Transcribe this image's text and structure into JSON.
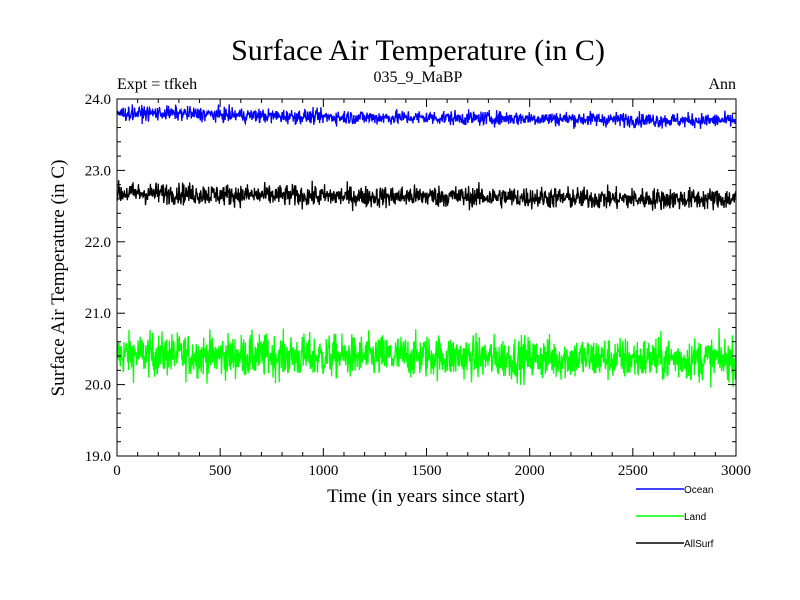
{
  "chart_data": {
    "type": "line",
    "title": "Surface Air Temperature (in C)",
    "subtitle": "035_9_MaBP",
    "left_annotation": "Expt = tfkeh",
    "right_annotation": "Ann",
    "xlabel": "Time (in years since start)",
    "ylabel": "Surface Air Temperature (in C)",
    "xlim": [
      0,
      3000
    ],
    "ylim": [
      19.0,
      24.0
    ],
    "x_ticks": [
      0,
      500,
      1000,
      1500,
      2000,
      2500,
      3000
    ],
    "x_tick_labels": [
      "0",
      "500",
      "1000",
      "1500",
      "2000",
      "2500",
      "3000"
    ],
    "y_ticks": [
      19.0,
      20.0,
      21.0,
      22.0,
      23.0,
      24.0
    ],
    "y_tick_labels": [
      "19.0",
      "20.0",
      "21.0",
      "22.0",
      "23.0",
      "24.0"
    ],
    "grid": false,
    "legend_position": "bottom-right",
    "series": [
      {
        "name": "Ocean",
        "color": "#0000ff",
        "x": [
          0,
          250,
          500,
          750,
          1000,
          1250,
          1500,
          1750,
          2000,
          2250,
          2500,
          2750,
          3000
        ],
        "values": [
          23.8,
          23.8,
          23.78,
          23.76,
          23.75,
          23.74,
          23.74,
          23.73,
          23.73,
          23.72,
          23.71,
          23.7,
          23.7
        ]
      },
      {
        "name": "AllSurf",
        "color": "#000000",
        "x": [
          0,
          250,
          500,
          750,
          1000,
          1250,
          1500,
          1750,
          2000,
          2250,
          2500,
          2750,
          3000
        ],
        "values": [
          22.68,
          22.68,
          22.66,
          22.65,
          22.64,
          22.63,
          22.64,
          22.63,
          22.62,
          22.61,
          22.6,
          22.6,
          22.6
        ]
      },
      {
        "name": "Land",
        "color": "#00ff00",
        "x": [
          0,
          250,
          500,
          750,
          1000,
          1250,
          1500,
          1750,
          2000,
          2250,
          2500,
          2750,
          3000
        ],
        "values": [
          20.42,
          20.42,
          20.4,
          20.4,
          20.39,
          20.39,
          20.4,
          20.38,
          20.37,
          20.37,
          20.36,
          20.36,
          20.35
        ]
      }
    ]
  }
}
